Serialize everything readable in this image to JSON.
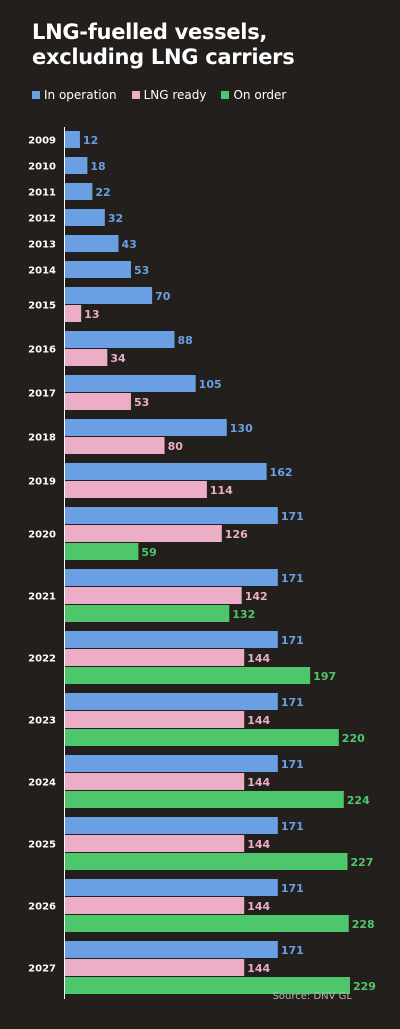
{
  "title_line1": "LNG-fuelled vessels,",
  "title_line2": "excluding LNG carriers",
  "source": "Source: DNV GL",
  "colors": {
    "background": "#231f1c",
    "in_operation": "#6a9fe4",
    "lng_ready": "#ecadc6",
    "on_order": "#4ec66b"
  },
  "legend": [
    {
      "label": "In operation",
      "color": "#6a9fe4"
    },
    {
      "label": "LNG ready",
      "color": "#ecadc6"
    },
    {
      "label": "On order",
      "color": "#4ec66b"
    }
  ],
  "chart_data": {
    "type": "bar",
    "orientation": "horizontal",
    "title": "LNG-fuelled vessels, excluding LNG carriers",
    "categories": [
      "2009",
      "2010",
      "2011",
      "2012",
      "2013",
      "2014",
      "2015",
      "2016",
      "2017",
      "2018",
      "2019",
      "2020",
      "2021",
      "2022",
      "2023",
      "2024",
      "2025",
      "2026",
      "2027"
    ],
    "series": [
      {
        "name": "In operation",
        "color": "#6a9fe4",
        "values": [
          12,
          18,
          22,
          32,
          43,
          53,
          70,
          88,
          105,
          130,
          162,
          171,
          171,
          171,
          171,
          171,
          171,
          171,
          171
        ]
      },
      {
        "name": "LNG ready",
        "color": "#ecadc6",
        "values": [
          null,
          null,
          null,
          null,
          null,
          null,
          13,
          34,
          53,
          80,
          114,
          126,
          142,
          144,
          144,
          144,
          144,
          144,
          144
        ]
      },
      {
        "name": "On order",
        "color": "#4ec66b",
        "values": [
          null,
          null,
          null,
          null,
          null,
          null,
          null,
          null,
          null,
          null,
          null,
          59,
          132,
          197,
          220,
          224,
          227,
          228,
          229
        ]
      }
    ],
    "xlim": [
      0,
      229
    ],
    "grid": false,
    "legend_position": "top-left",
    "data_labels": true
  }
}
